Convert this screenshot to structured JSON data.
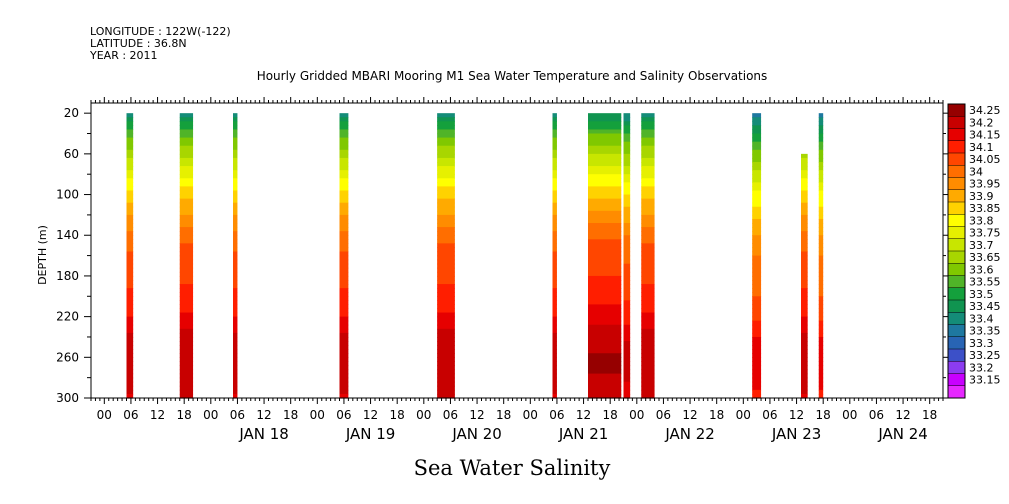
{
  "header": {
    "longitude": "LONGITUDE : 122W(-122)",
    "latitude": "LATITUDE : 36.8N",
    "year": "YEAR : 2011"
  },
  "chart_data": {
    "type": "heatmap",
    "title": "Hourly Gridded MBARI Mooring M1 Sea Water Temperature and Salinity Observations",
    "xlabel": "Sea Water Salinity",
    "ylabel": "DEPTH (m)",
    "x_units": "hours since 2011-01-17 00:00",
    "xlim": [
      -3,
      189
    ],
    "ylim": [
      300,
      10
    ],
    "y_ticks": [
      20,
      60,
      100,
      140,
      180,
      220,
      260,
      300
    ],
    "x_hour_ticks": [
      "00",
      "06",
      "12",
      "18",
      "00",
      "06",
      "12",
      "18",
      "00",
      "06",
      "12",
      "18",
      "00",
      "06",
      "12",
      "18",
      "00",
      "06",
      "12",
      "18",
      "00",
      "06",
      "12",
      "18",
      "00",
      "06",
      "12",
      "18",
      "00",
      "06",
      "12",
      "18"
    ],
    "x_hour_tick_values": [
      0,
      6,
      12,
      18,
      24,
      30,
      36,
      42,
      48,
      54,
      60,
      66,
      72,
      78,
      84,
      90,
      96,
      102,
      108,
      114,
      120,
      126,
      132,
      138,
      144,
      150,
      156,
      162,
      168,
      174,
      180,
      186
    ],
    "day_labels": [
      "JAN 18",
      "JAN 19",
      "JAN 20",
      "JAN 21",
      "JAN 22",
      "JAN 23",
      "JAN 24"
    ],
    "day_label_centers": [
      36,
      60,
      84,
      108,
      132,
      156,
      180
    ],
    "colorbar_levels": [
      "34.25",
      "34.2",
      "34.15",
      "34.1",
      "34.05",
      "34",
      "33.95",
      "33.9",
      "33.85",
      "33.8",
      "33.75",
      "33.7",
      "33.65",
      "33.6",
      "33.55",
      "33.5",
      "33.45",
      "33.4",
      "33.35",
      "33.3",
      "33.25",
      "33.2",
      "33.15"
    ],
    "colors": [
      "#960000",
      "#c80000",
      "#e60000",
      "#ff1e00",
      "#ff4600",
      "#ff6e00",
      "#ff8c00",
      "#ffaa00",
      "#ffd200",
      "#ffff00",
      "#e6f000",
      "#c8e600",
      "#a8d600",
      "#80c800",
      "#50b428",
      "#14a03c",
      "#109450",
      "#148c78",
      "#1e78a0",
      "#2864b4",
      "#3c50c8",
      "#8c3cf0",
      "#c800ff",
      "#e628ff"
    ],
    "salinity_profile": [
      {
        "depth": 20,
        "value": 33.42
      },
      {
        "depth": 30,
        "value": 33.5
      },
      {
        "depth": 40,
        "value": 33.57
      },
      {
        "depth": 55,
        "value": 33.65
      },
      {
        "depth": 70,
        "value": 33.72
      },
      {
        "depth": 85,
        "value": 33.8
      },
      {
        "depth": 100,
        "value": 33.87
      },
      {
        "depth": 115,
        "value": 33.93
      },
      {
        "depth": 130,
        "value": 33.98
      },
      {
        "depth": 145,
        "value": 34.03
      },
      {
        "depth": 160,
        "value": 34.06
      },
      {
        "depth": 180,
        "value": 34.08
      },
      {
        "depth": 200,
        "value": 34.11
      },
      {
        "depth": 215,
        "value": 34.14
      },
      {
        "depth": 230,
        "value": 34.18
      },
      {
        "depth": 245,
        "value": 34.22
      },
      {
        "depth": 265,
        "value": 34.24
      },
      {
        "depth": 285,
        "value": 34.22
      },
      {
        "depth": 300,
        "value": 34.19
      }
    ],
    "data_segments": [
      {
        "start": 5,
        "end": 6.5,
        "top_depth": 20,
        "shift": 0
      },
      {
        "start": 17,
        "end": 20,
        "top_depth": 20,
        "shift": 0.01
      },
      {
        "start": 29,
        "end": 30,
        "top_depth": 20,
        "shift": 0
      },
      {
        "start": 53,
        "end": 55,
        "top_depth": 20,
        "shift": 0
      },
      {
        "start": 75,
        "end": 79,
        "top_depth": 20,
        "shift": 0.01
      },
      {
        "start": 101,
        "end": 102,
        "top_depth": 20,
        "shift": 0
      },
      {
        "start": 109,
        "end": 116.5,
        "top_depth": 20,
        "shift": 0.02
      },
      {
        "start": 117,
        "end": 118.5,
        "top_depth": 20,
        "shift": -0.02
      },
      {
        "start": 121,
        "end": 124,
        "top_depth": 20,
        "shift": 0.01
      },
      {
        "start": 146,
        "end": 148,
        "top_depth": 20,
        "shift": -0.06
      },
      {
        "start": 157,
        "end": 158.5,
        "top_depth": 60,
        "shift": 0
      },
      {
        "start": 161,
        "end": 162,
        "top_depth": 20,
        "shift": -0.06
      }
    ]
  }
}
